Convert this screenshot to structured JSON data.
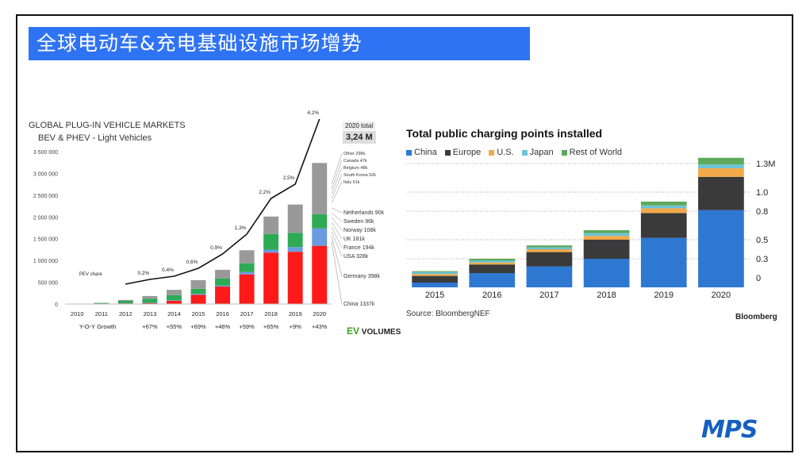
{
  "banner": "全球电动车&充电基础设施市场增势",
  "chart_data": [
    {
      "type": "bar",
      "title": "GLOBAL PLUG-IN VEHICLE MARKETS",
      "subtitle": "BEV & PHEV - Light Vehicles",
      "categories": [
        "2010",
        "2011",
        "2012",
        "2013",
        "2014",
        "2015",
        "2016",
        "2017",
        "2018",
        "2019",
        "2020"
      ],
      "ylim": [
        0,
        3500000
      ],
      "yticks": [
        "3 500 000",
        "3 000 000",
        "2 500 000",
        "2 000 000",
        "1 500 000",
        "1 000 000",
        "500 000",
        "0"
      ],
      "series": [
        {
          "name": "China",
          "color": "#ff1a1a",
          "values": [
            0,
            5000,
            15000,
            20000,
            75000,
            210000,
            400000,
            680000,
            1180000,
            1200000,
            1337000
          ]
        },
        {
          "name": "Germany",
          "color": "#6a9ae0",
          "values": [
            0,
            2000,
            3000,
            7000,
            12000,
            24000,
            25000,
            55000,
            68000,
            108000,
            398000
          ]
        },
        {
          "name": "USA",
          "color": "#2eaa55",
          "values": [
            0,
            17000,
            55000,
            97000,
            118000,
            114000,
            160000,
            200000,
            361000,
            327000,
            328000
          ]
        },
        {
          "name": "Other",
          "color": "#999999",
          "values": [
            0,
            4000,
            20000,
            60000,
            120000,
            200000,
            200000,
            300000,
            400000,
            650000,
            1177000
          ]
        }
      ],
      "right_labels": [
        "Other 298k",
        "Canada 47k",
        "Belgium 48k",
        "South Korea 52k",
        "Italy 61k",
        "Netherlands 90k",
        "Sweden 96k",
        "Norway 108k",
        "UK 181k",
        "France 194k",
        "USA 328k",
        "Germany 398k",
        "China 1337k"
      ],
      "pev_share_label": "PEV share",
      "pev_share": [
        "0,2%",
        "0,4%",
        "0,6%",
        "0,9%",
        "1,3%",
        "2,2%",
        "2,5%",
        "4,2%"
      ],
      "yoy_label": "Y-O-Y Growth",
      "yoy": [
        "+67%",
        "+55%",
        "+69%",
        "+46%",
        "+59%",
        "+65%",
        "+9%",
        "+43%"
      ],
      "total_label": "2020 total",
      "total_value": "3,24 M"
    },
    {
      "type": "bar",
      "title": "Total public charging points installed",
      "categories": [
        "2015",
        "2016",
        "2017",
        "2018",
        "2019",
        "2020"
      ],
      "yticks": [
        "1.3M",
        "1.0",
        "0.8",
        "0.5",
        "0.3",
        "0"
      ],
      "ylim": [
        0,
        1.3
      ],
      "series": [
        {
          "name": "China",
          "color": "#2e78d2",
          "values": [
            0.05,
            0.15,
            0.22,
            0.3,
            0.52,
            0.81
          ]
        },
        {
          "name": "Europe",
          "color": "#3a3a3a",
          "values": [
            0.07,
            0.09,
            0.15,
            0.2,
            0.26,
            0.35
          ]
        },
        {
          "name": "U.S.",
          "color": "#f2a94a",
          "values": [
            0.02,
            0.02,
            0.03,
            0.04,
            0.05,
            0.09
          ]
        },
        {
          "name": "Japan",
          "color": "#6cc3d8",
          "values": [
            0.02,
            0.02,
            0.02,
            0.03,
            0.03,
            0.04
          ]
        },
        {
          "name": "Rest of World",
          "color": "#5fa85a",
          "values": [
            0.01,
            0.02,
            0.02,
            0.03,
            0.04,
            0.07
          ]
        }
      ],
      "source": "Source: BloombergNEF",
      "brand": "Bloomberg"
    }
  ],
  "ev_logo": {
    "ev": "EV",
    "volumes": "VOLUMES"
  },
  "logo": "mps"
}
